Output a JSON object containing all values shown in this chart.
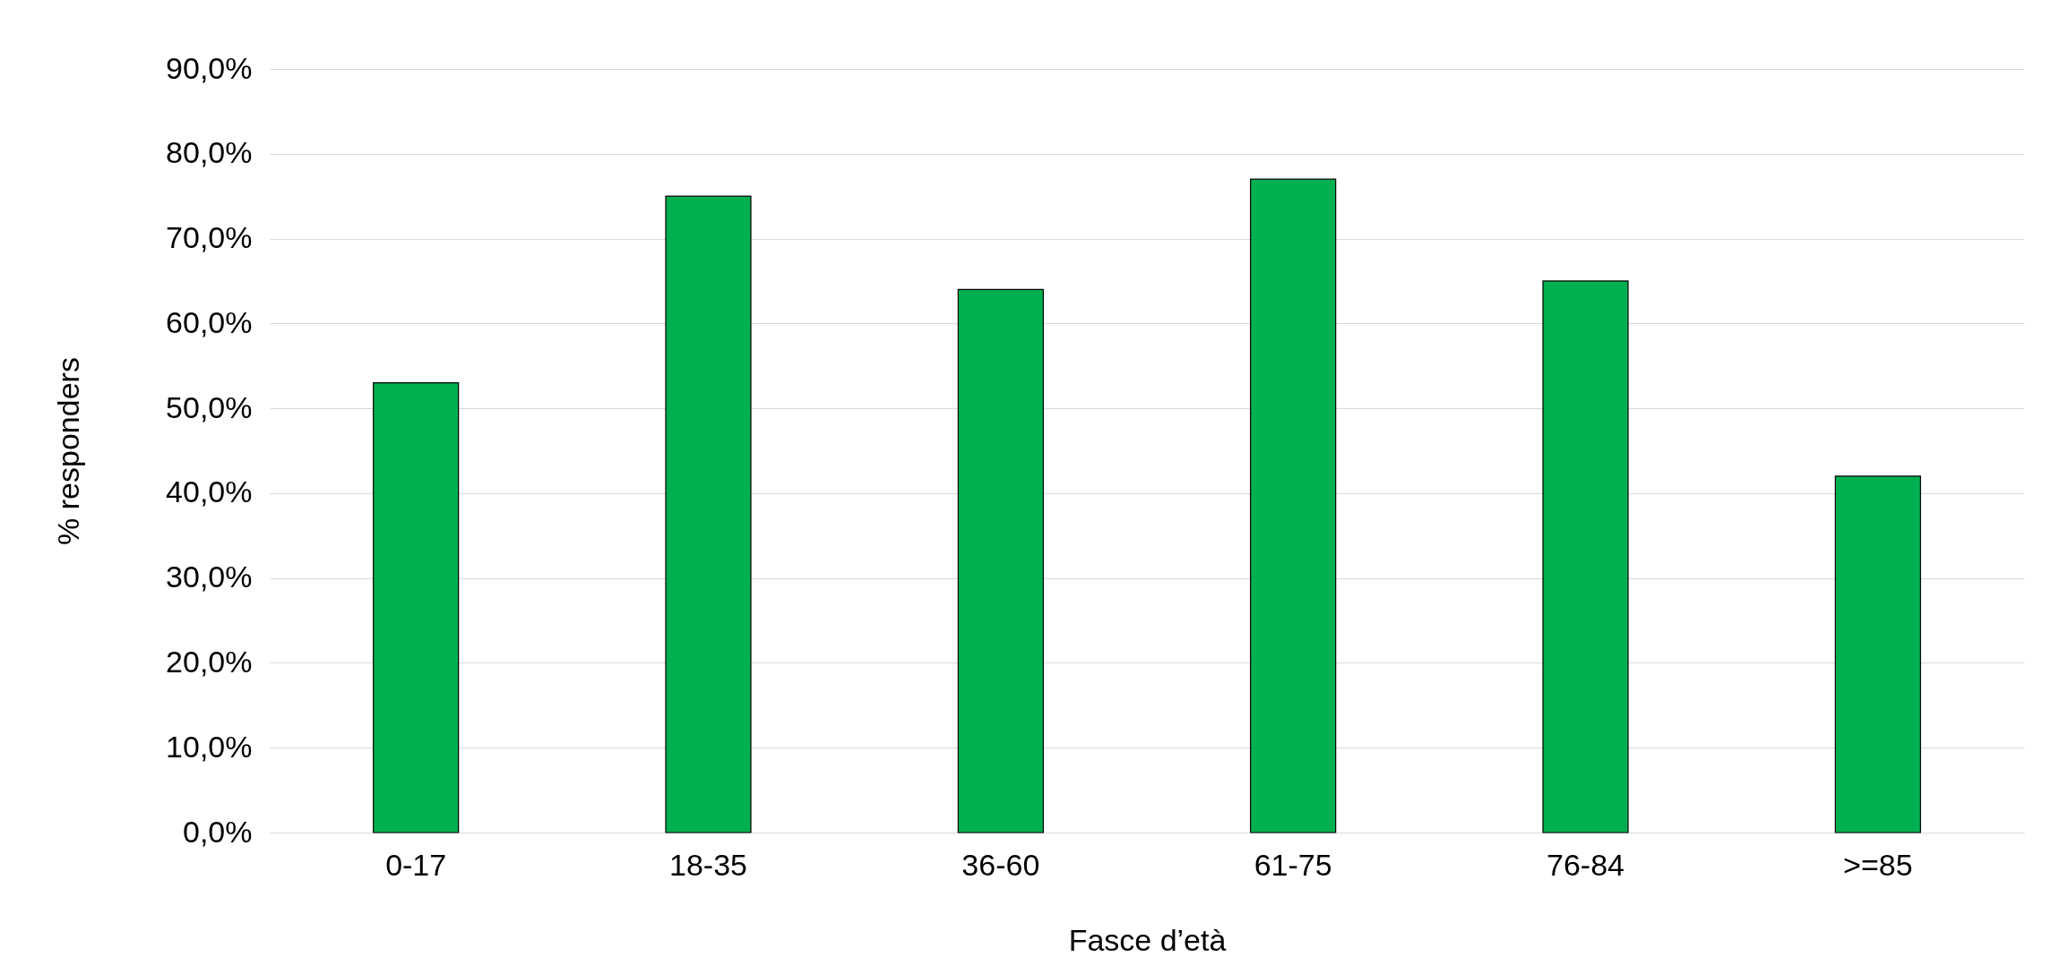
{
  "chart_data": {
    "type": "bar",
    "xlabel": "Fasce d’età",
    "ylabel": "% responders",
    "categories": [
      "0-17",
      "18-35",
      "36-60",
      "61-75",
      "76-84",
      ">=85"
    ],
    "values": [
      53,
      75,
      64,
      77,
      65,
      42
    ],
    "color": "#00b050",
    "ylim": [
      0,
      90
    ],
    "yticks": [
      {
        "value": 0,
        "label": "0,0%"
      },
      {
        "value": 10,
        "label": "10,0%"
      },
      {
        "value": 20,
        "label": "20,0%"
      },
      {
        "value": 30,
        "label": "30,0%"
      },
      {
        "value": 40,
        "label": "40,0%"
      },
      {
        "value": 50,
        "label": "50,0%"
      },
      {
        "value": 60,
        "label": "60,0%"
      },
      {
        "value": 70,
        "label": "70,0%"
      },
      {
        "value": 80,
        "label": "80,0%"
      },
      {
        "value": 90,
        "label": "90,0%"
      }
    ],
    "grid": "y"
  }
}
